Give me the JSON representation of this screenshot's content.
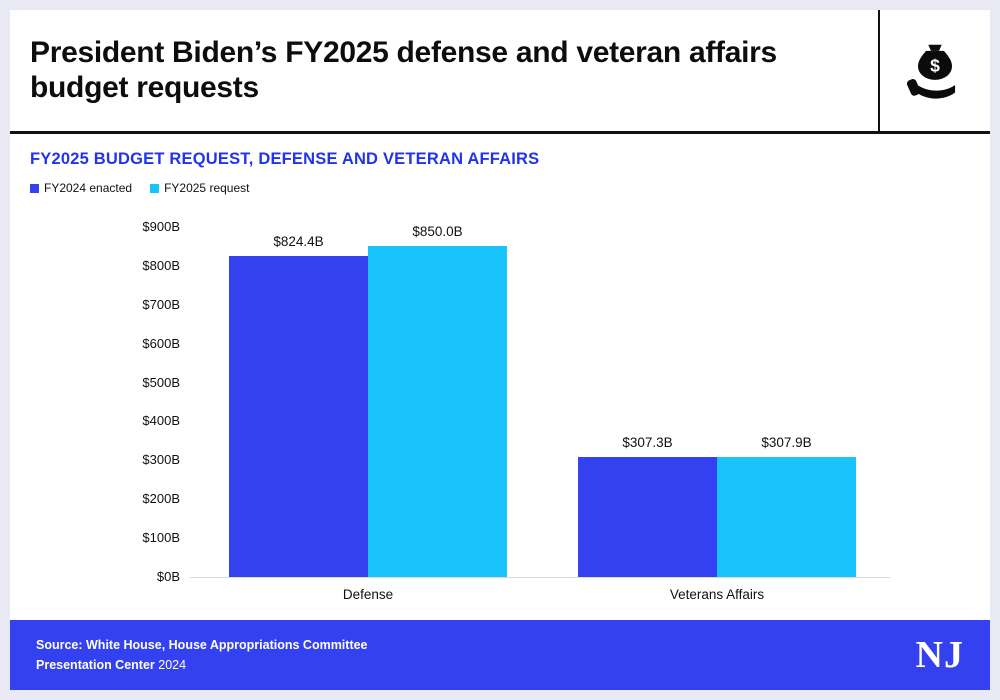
{
  "header": {
    "title": "President Biden’s FY2025 defense and veteran affairs budget requests",
    "icon": "money-bag-in-hand"
  },
  "chart": {
    "title": "FY2025 BUDGET REQUEST, DEFENSE AND VETERAN AFFAIRS",
    "title_color": "#2133ee"
  },
  "chart_data": {
    "type": "bar",
    "categories": [
      "Defense",
      "Veterans Affairs"
    ],
    "series": [
      {
        "name": "FY2024 enacted",
        "color": "#3341f0",
        "values": [
          824.4,
          307.3
        ],
        "labels": [
          "$824.4B",
          "$307.3B"
        ]
      },
      {
        "name": "FY2025 request",
        "color": "#19c3fc",
        "values": [
          850.0,
          307.9
        ],
        "labels": [
          "$850.0B",
          "$307.9B"
        ]
      }
    ],
    "xlabel": "",
    "ylabel": "",
    "ylim": [
      0,
      900
    ],
    "ytick_step": 100,
    "ytick_labels": [
      "$0B",
      "$100B",
      "$200B",
      "$300B",
      "$400B",
      "$500B",
      "$600B",
      "$700B",
      "$800B",
      "$900B"
    ],
    "legend_position": "top-left",
    "grid": false
  },
  "footer": {
    "source": "Source: White House, House Appropriations Committee",
    "brand": "Presentation Center",
    "year": "2024",
    "logo": "NJ",
    "background": "#3341f0"
  }
}
